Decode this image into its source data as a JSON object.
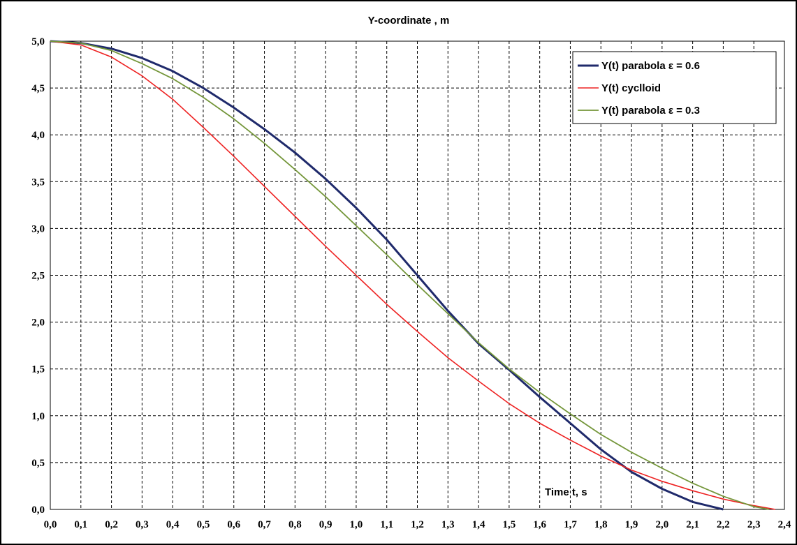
{
  "chart_data": {
    "type": "line",
    "title": "Y-coordinate , m",
    "xlabel": "Time t, s",
    "ylabel": "",
    "xlim": [
      0.0,
      2.4
    ],
    "ylim": [
      0.0,
      5.0
    ],
    "x_ticks": [
      "0,0",
      "0,1",
      "0,2",
      "0,3",
      "0,4",
      "0,5",
      "0,6",
      "0,7",
      "0,8",
      "0,9",
      "1,0",
      "1,1",
      "1,2",
      "1,3",
      "1,4",
      "1,5",
      "1,6",
      "1,7",
      "1,8",
      "1,9",
      "2,0",
      "2,1",
      "2,2",
      "2,3",
      "2,4"
    ],
    "y_ticks": [
      "0,0",
      "0,5",
      "1,0",
      "1,5",
      "2,0",
      "2,5",
      "3,0",
      "3,5",
      "4,0",
      "4,5",
      "5,0"
    ],
    "grid": true,
    "legend_position": "top-right",
    "series": [
      {
        "name": "Y(t) parabola ε = 0.6",
        "color": "#1f2a6b",
        "x": [
          0.0,
          0.1,
          0.2,
          0.3,
          0.4,
          0.5,
          0.6,
          0.7,
          0.8,
          0.9,
          1.0,
          1.1,
          1.2,
          1.3,
          1.4,
          1.5,
          1.6,
          1.7,
          1.8,
          1.9,
          2.0,
          2.1,
          2.2
        ],
        "y": [
          5.0,
          4.98,
          4.92,
          4.82,
          4.68,
          4.5,
          4.29,
          4.06,
          3.81,
          3.53,
          3.22,
          2.88,
          2.5,
          2.12,
          1.77,
          1.49,
          1.2,
          0.92,
          0.64,
          0.4,
          0.22,
          0.08,
          0.0
        ]
      },
      {
        "name": "Y(t) cyclloid",
        "color": "#ee2222",
        "x": [
          0.0,
          0.1,
          0.2,
          0.3,
          0.4,
          0.5,
          0.6,
          0.7,
          0.8,
          0.9,
          1.0,
          1.1,
          1.2,
          1.3,
          1.4,
          1.5,
          1.6,
          1.7,
          1.8,
          1.9,
          2.0,
          2.1,
          2.2,
          2.3,
          2.37
        ],
        "y": [
          5.0,
          4.96,
          4.83,
          4.63,
          4.38,
          4.08,
          3.77,
          3.45,
          3.13,
          2.81,
          2.5,
          2.19,
          1.9,
          1.62,
          1.37,
          1.13,
          0.92,
          0.74,
          0.57,
          0.42,
          0.3,
          0.2,
          0.11,
          0.04,
          0.0
        ]
      },
      {
        "name": "Y(t) parabola ε = 0.3",
        "color": "#74963a",
        "x": [
          0.0,
          0.1,
          0.2,
          0.3,
          0.4,
          0.5,
          0.6,
          0.7,
          0.8,
          0.9,
          1.0,
          1.1,
          1.2,
          1.3,
          1.4,
          1.5,
          1.6,
          1.7,
          1.8,
          1.9,
          2.0,
          2.1,
          2.2,
          2.3,
          2.35
        ],
        "y": [
          5.0,
          4.98,
          4.9,
          4.76,
          4.6,
          4.4,
          4.17,
          3.91,
          3.63,
          3.34,
          3.03,
          2.72,
          2.4,
          2.09,
          1.78,
          1.5,
          1.25,
          1.02,
          0.8,
          0.61,
          0.44,
          0.28,
          0.14,
          0.03,
          0.0
        ]
      }
    ]
  }
}
